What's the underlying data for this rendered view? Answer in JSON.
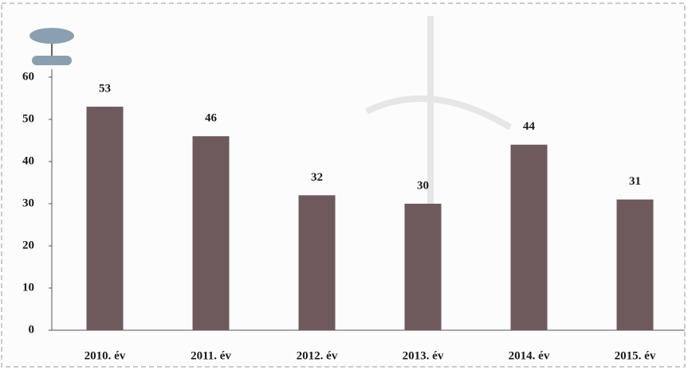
{
  "chart_data": {
    "type": "bar",
    "categories": [
      "2010. év",
      "2011. év",
      "2012. év",
      "2013. év",
      "2014. év",
      "2015. év"
    ],
    "values": [
      53,
      46,
      32,
      30,
      44,
      31
    ],
    "color": "#6e5a5c",
    "ylim": [
      0,
      60
    ],
    "yticks": [
      0,
      10,
      20,
      30,
      40,
      50,
      60
    ]
  }
}
